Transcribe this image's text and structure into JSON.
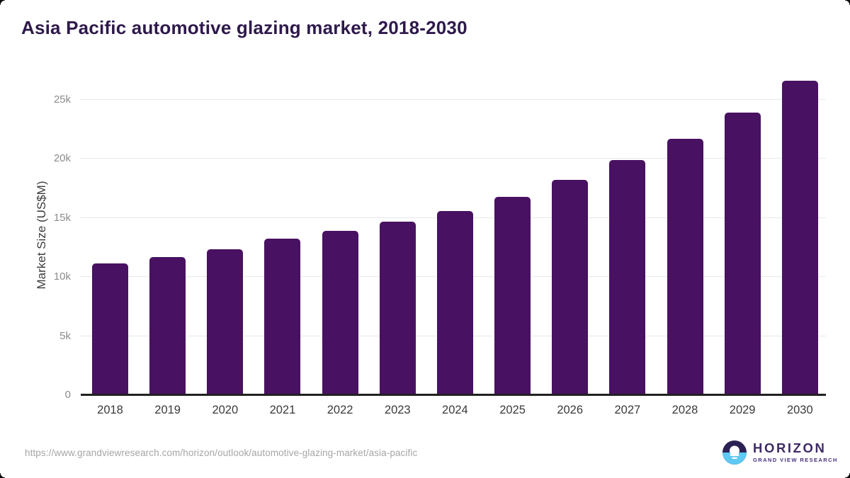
{
  "title": "Asia Pacific automotive glazing market, 2018-2030",
  "chart_data": {
    "type": "bar",
    "title": "Asia Pacific automotive glazing market, 2018-2030",
    "categories": [
      "2018",
      "2019",
      "2020",
      "2021",
      "2022",
      "2023",
      "2024",
      "2025",
      "2026",
      "2027",
      "2028",
      "2029",
      "2030"
    ],
    "values": [
      11050,
      11600,
      12250,
      13150,
      13850,
      14600,
      15500,
      16700,
      18150,
      19800,
      21600,
      23850,
      26550
    ],
    "xlabel": "",
    "ylabel": "Market Size (US$M)",
    "ylim": [
      0,
      27400
    ],
    "yticks": [
      {
        "value": 0,
        "label": "0"
      },
      {
        "value": 5000,
        "label": "5k"
      },
      {
        "value": 10000,
        "label": "10k"
      },
      {
        "value": 15000,
        "label": "15k"
      },
      {
        "value": 20000,
        "label": "20k"
      },
      {
        "value": 25000,
        "label": "25k"
      }
    ],
    "grid": true,
    "legend": false,
    "bar_color": "#491161",
    "background": "#ffffff"
  },
  "footer": {
    "source_url": "https://www.grandviewresearch.com/horizon/outlook/automotive-glazing-market/asia-pacific",
    "logo": {
      "name": "HORIZON",
      "tagline": "GRAND VIEW RESEARCH"
    }
  },
  "colors": {
    "title": "#2e194b",
    "bar": "#491161",
    "axis_line": "#212121",
    "gridline": "#e8e8e8",
    "y_tick_label": "#8c8c8c",
    "x_tick_label": "#3a3a3a",
    "y_axis_title": "#3d3d3d",
    "url_text": "#a6a6a6",
    "logo_dark_half": "#2b2153",
    "logo_blue_half": "#5ec9f2",
    "logo_text": "#3e2a66"
  }
}
